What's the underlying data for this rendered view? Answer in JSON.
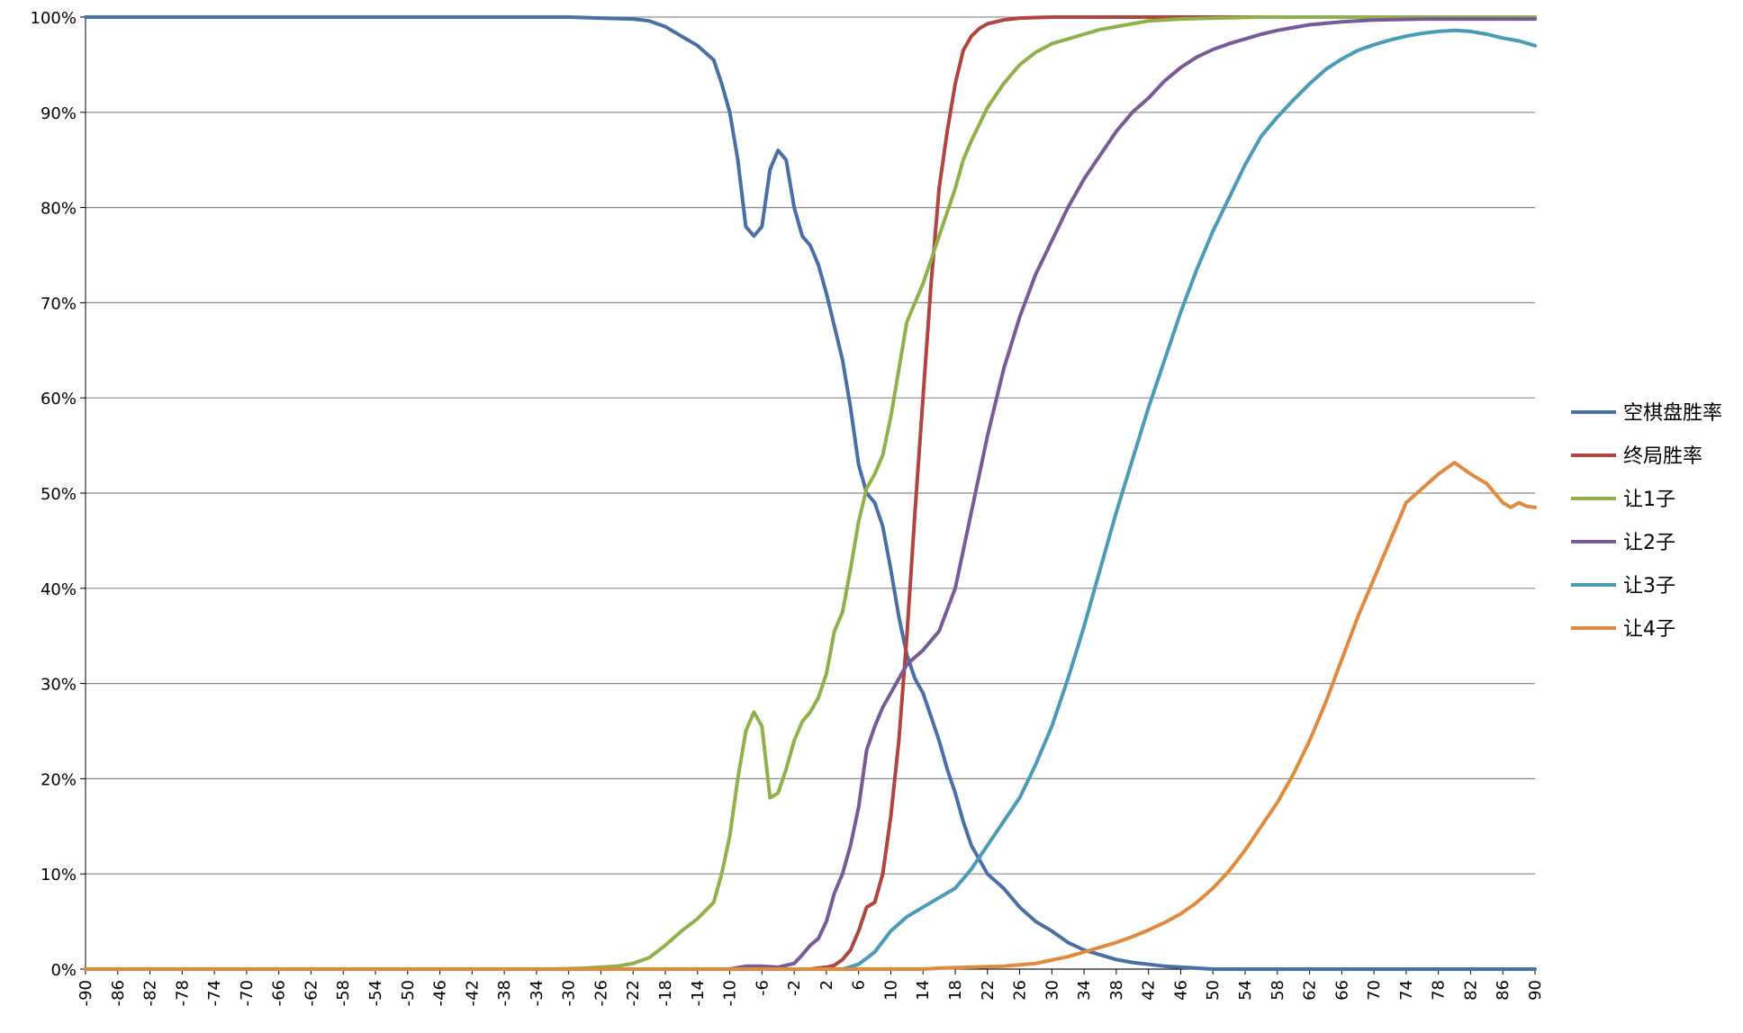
{
  "chart_data": {
    "type": "line",
    "title": "",
    "xlabel": "",
    "ylabel": "",
    "xlim": [
      -90,
      90
    ],
    "ylim": [
      0,
      100
    ],
    "y_ticks": [
      "0%",
      "10%",
      "20%",
      "30%",
      "40%",
      "50%",
      "60%",
      "70%",
      "80%",
      "90%",
      "100%"
    ],
    "x_ticks": [
      "-90",
      "-86",
      "-82",
      "-78",
      "-74",
      "-70",
      "-66",
      "-62",
      "-58",
      "-54",
      "-50",
      "-46",
      "-42",
      "-38",
      "-34",
      "-30",
      "-26",
      "-22",
      "-18",
      "-14",
      "-10",
      "-6",
      "-2",
      "2",
      "6",
      "10",
      "14",
      "18",
      "22",
      "26",
      "30",
      "34",
      "38",
      "42",
      "46",
      "50",
      "54",
      "58",
      "62",
      "66",
      "70",
      "74",
      "78",
      "82",
      "86",
      "90"
    ],
    "grid": "horizontal",
    "legend": "right",
    "series": [
      {
        "name": "空棋盘胜率",
        "color": "#4a6fa5",
        "points": [
          [
            -90,
            100
          ],
          [
            -30,
            100
          ],
          [
            -26,
            99.9
          ],
          [
            -22,
            99.8
          ],
          [
            -20,
            99.6
          ],
          [
            -18,
            99
          ],
          [
            -16,
            98
          ],
          [
            -14,
            97
          ],
          [
            -12,
            95.5
          ],
          [
            -11,
            93
          ],
          [
            -10,
            90
          ],
          [
            -9,
            85
          ],
          [
            -8,
            78
          ],
          [
            -7,
            77
          ],
          [
            -6,
            78
          ],
          [
            -5,
            84
          ],
          [
            -4,
            86
          ],
          [
            -3,
            85
          ],
          [
            -2,
            80
          ],
          [
            -1,
            77
          ],
          [
            0,
            76
          ],
          [
            1,
            74
          ],
          [
            2,
            71
          ],
          [
            3,
            67.5
          ],
          [
            4,
            64
          ],
          [
            5,
            59
          ],
          [
            6,
            53
          ],
          [
            7,
            50
          ],
          [
            8,
            49
          ],
          [
            9,
            46.5
          ],
          [
            10,
            42
          ],
          [
            11,
            37
          ],
          [
            12,
            33
          ],
          [
            13,
            30.5
          ],
          [
            14,
            29
          ],
          [
            15,
            26.5
          ],
          [
            16,
            24
          ],
          [
            17,
            21
          ],
          [
            18,
            18.5
          ],
          [
            19,
            15.5
          ],
          [
            20,
            13
          ],
          [
            21,
            11.5
          ],
          [
            22,
            10
          ],
          [
            24,
            8.5
          ],
          [
            26,
            6.5
          ],
          [
            28,
            5
          ],
          [
            30,
            4
          ],
          [
            32,
            2.8
          ],
          [
            34,
            2
          ],
          [
            36,
            1.5
          ],
          [
            38,
            1
          ],
          [
            40,
            0.7
          ],
          [
            42,
            0.5
          ],
          [
            44,
            0.3
          ],
          [
            48,
            0.1
          ],
          [
            50,
            0
          ],
          [
            90,
            0
          ]
        ]
      },
      {
        "name": "终局胜率",
        "color": "#b0443f",
        "points": [
          [
            -90,
            0
          ],
          [
            0,
            0
          ],
          [
            2,
            0.2
          ],
          [
            3,
            0.4
          ],
          [
            4,
            1
          ],
          [
            5,
            2
          ],
          [
            6,
            4
          ],
          [
            7,
            6.5
          ],
          [
            8,
            7
          ],
          [
            9,
            10
          ],
          [
            10,
            16
          ],
          [
            11,
            24
          ],
          [
            12,
            35
          ],
          [
            13,
            48
          ],
          [
            14,
            60
          ],
          [
            15,
            72
          ],
          [
            16,
            82
          ],
          [
            17,
            88
          ],
          [
            18,
            93
          ],
          [
            19,
            96.5
          ],
          [
            20,
            98
          ],
          [
            21,
            98.8
          ],
          [
            22,
            99.3
          ],
          [
            24,
            99.7
          ],
          [
            26,
            99.9
          ],
          [
            30,
            100
          ],
          [
            90,
            100
          ]
        ]
      },
      {
        "name": "让1子",
        "color": "#92b04a",
        "points": [
          [
            -90,
            0
          ],
          [
            -32,
            0
          ],
          [
            -28,
            0.1
          ],
          [
            -24,
            0.3
          ],
          [
            -22,
            0.6
          ],
          [
            -20,
            1.2
          ],
          [
            -18,
            2.5
          ],
          [
            -16,
            4
          ],
          [
            -14,
            5.3
          ],
          [
            -12,
            7
          ],
          [
            -11,
            10
          ],
          [
            -10,
            14
          ],
          [
            -9,
            20
          ],
          [
            -8,
            25
          ],
          [
            -7,
            27
          ],
          [
            -6,
            25.5
          ],
          [
            -5,
            18
          ],
          [
            -4,
            18.5
          ],
          [
            -3,
            21
          ],
          [
            -2,
            24
          ],
          [
            -1,
            26
          ],
          [
            0,
            27
          ],
          [
            1,
            28.5
          ],
          [
            2,
            31
          ],
          [
            3,
            35.5
          ],
          [
            4,
            37.5
          ],
          [
            5,
            42
          ],
          [
            6,
            47
          ],
          [
            7,
            50.5
          ],
          [
            8,
            52
          ],
          [
            9,
            54
          ],
          [
            10,
            58
          ],
          [
            11,
            63
          ],
          [
            12,
            68
          ],
          [
            13,
            70
          ],
          [
            14,
            72
          ],
          [
            15,
            74.5
          ],
          [
            16,
            77
          ],
          [
            17,
            79.5
          ],
          [
            18,
            82
          ],
          [
            19,
            85
          ],
          [
            20,
            87
          ],
          [
            22,
            90.5
          ],
          [
            24,
            93
          ],
          [
            26,
            95
          ],
          [
            28,
            96.3
          ],
          [
            30,
            97.2
          ],
          [
            32,
            97.7
          ],
          [
            34,
            98.2
          ],
          [
            36,
            98.7
          ],
          [
            38,
            99
          ],
          [
            40,
            99.3
          ],
          [
            42,
            99.6
          ],
          [
            46,
            99.8
          ],
          [
            50,
            99.9
          ],
          [
            56,
            100
          ],
          [
            90,
            100
          ]
        ]
      },
      {
        "name": "让2子",
        "color": "#7a5a96",
        "points": [
          [
            -90,
            0
          ],
          [
            -10,
            0
          ],
          [
            -8,
            0.3
          ],
          [
            -6,
            0.3
          ],
          [
            -4,
            0.2
          ],
          [
            -2,
            0.6
          ],
          [
            -1,
            1.5
          ],
          [
            0,
            2.5
          ],
          [
            1,
            3.2
          ],
          [
            2,
            5
          ],
          [
            3,
            8
          ],
          [
            4,
            10
          ],
          [
            5,
            13
          ],
          [
            6,
            17
          ],
          [
            7,
            23
          ],
          [
            8,
            25.5
          ],
          [
            9,
            27.5
          ],
          [
            10,
            29
          ],
          [
            12,
            32
          ],
          [
            14,
            33.5
          ],
          [
            16,
            35.5
          ],
          [
            18,
            40
          ],
          [
            20,
            48
          ],
          [
            22,
            56
          ],
          [
            24,
            63
          ],
          [
            26,
            68.5
          ],
          [
            28,
            73
          ],
          [
            30,
            76.5
          ],
          [
            32,
            80
          ],
          [
            34,
            83
          ],
          [
            36,
            85.5
          ],
          [
            38,
            88
          ],
          [
            40,
            90
          ],
          [
            42,
            91.5
          ],
          [
            44,
            93.3
          ],
          [
            46,
            94.7
          ],
          [
            48,
            95.8
          ],
          [
            50,
            96.6
          ],
          [
            52,
            97.2
          ],
          [
            54,
            97.7
          ],
          [
            56,
            98.2
          ],
          [
            58,
            98.6
          ],
          [
            60,
            98.9
          ],
          [
            62,
            99.2
          ],
          [
            66,
            99.5
          ],
          [
            70,
            99.7
          ],
          [
            76,
            99.8
          ],
          [
            90,
            99.8
          ]
        ]
      },
      {
        "name": "让3子",
        "color": "#4a9ab8",
        "points": [
          [
            -90,
            0
          ],
          [
            4,
            0
          ],
          [
            6,
            0.5
          ],
          [
            8,
            1.8
          ],
          [
            10,
            4
          ],
          [
            12,
            5.5
          ],
          [
            14,
            6.5
          ],
          [
            16,
            7.5
          ],
          [
            18,
            8.5
          ],
          [
            20,
            10.5
          ],
          [
            22,
            13
          ],
          [
            24,
            15.5
          ],
          [
            26,
            18
          ],
          [
            28,
            21.5
          ],
          [
            30,
            25.5
          ],
          [
            32,
            30.5
          ],
          [
            34,
            36
          ],
          [
            36,
            42
          ],
          [
            38,
            48
          ],
          [
            40,
            53.5
          ],
          [
            42,
            59
          ],
          [
            44,
            64
          ],
          [
            46,
            69
          ],
          [
            48,
            73.5
          ],
          [
            50,
            77.5
          ],
          [
            52,
            81
          ],
          [
            54,
            84.5
          ],
          [
            56,
            87.5
          ],
          [
            58,
            89.5
          ],
          [
            60,
            91.3
          ],
          [
            62,
            93
          ],
          [
            64,
            94.5
          ],
          [
            66,
            95.6
          ],
          [
            68,
            96.5
          ],
          [
            70,
            97.1
          ],
          [
            72,
            97.6
          ],
          [
            74,
            98
          ],
          [
            76,
            98.3
          ],
          [
            78,
            98.5
          ],
          [
            80,
            98.6
          ],
          [
            82,
            98.5
          ],
          [
            84,
            98.2
          ],
          [
            86,
            97.8
          ],
          [
            88,
            97.5
          ],
          [
            90,
            97
          ]
        ]
      },
      {
        "name": "让4子",
        "color": "#e08a3c",
        "points": [
          [
            -90,
            0
          ],
          [
            14,
            0
          ],
          [
            16,
            0.1
          ],
          [
            20,
            0.2
          ],
          [
            24,
            0.3
          ],
          [
            28,
            0.6
          ],
          [
            32,
            1.3
          ],
          [
            34,
            1.8
          ],
          [
            36,
            2.3
          ],
          [
            38,
            2.8
          ],
          [
            40,
            3.4
          ],
          [
            42,
            4.1
          ],
          [
            44,
            4.9
          ],
          [
            46,
            5.8
          ],
          [
            48,
            7
          ],
          [
            50,
            8.5
          ],
          [
            52,
            10.3
          ],
          [
            54,
            12.5
          ],
          [
            56,
            15
          ],
          [
            58,
            17.5
          ],
          [
            60,
            20.5
          ],
          [
            62,
            24
          ],
          [
            64,
            28
          ],
          [
            66,
            32.5
          ],
          [
            68,
            37
          ],
          [
            70,
            41
          ],
          [
            72,
            45
          ],
          [
            74,
            49
          ],
          [
            76,
            50.5
          ],
          [
            78,
            52
          ],
          [
            80,
            53.2
          ],
          [
            82,
            52
          ],
          [
            84,
            51
          ],
          [
            86,
            49
          ],
          [
            87,
            48.5
          ],
          [
            88,
            49
          ],
          [
            89,
            48.6
          ],
          [
            90,
            48.5
          ]
        ]
      }
    ]
  }
}
